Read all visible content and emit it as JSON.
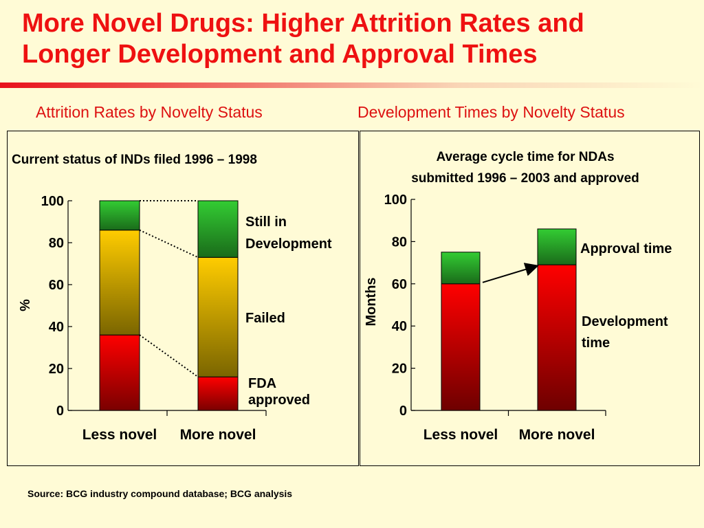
{
  "slide": {
    "title_line1": "More Novel Drugs: Higher Attrition Rates and",
    "title_line2": "Longer Development and Approval Times",
    "left_heading": "Attrition Rates by Novelty Status",
    "right_heading": "Development Times by Novelty Status",
    "source": "Source: BCG industry compound database; BCG analysis"
  },
  "colors": {
    "title": "#ee1111",
    "green": "#2f9e2f",
    "yellow": "#f2c200",
    "red": "#e60000"
  },
  "chart_data": [
    {
      "type": "bar",
      "stacked": true,
      "title": "Current status of INDs filed 1996 – 1998",
      "ylabel": "%",
      "ylim": [
        0,
        100
      ],
      "yticks": [
        0,
        20,
        40,
        60,
        80,
        100
      ],
      "categories": [
        "Less novel",
        "More novel"
      ],
      "series": [
        {
          "name": "FDA approved",
          "values": [
            36,
            16
          ]
        },
        {
          "name": "Failed",
          "values": [
            50,
            57
          ]
        },
        {
          "name": "Still in Development",
          "values": [
            14,
            27
          ]
        }
      ],
      "legend_labels": {
        "still_line1": "Still in",
        "still_line2": "Development",
        "failed": "Failed",
        "fda_line1": "FDA",
        "fda_line2": "approved"
      }
    },
    {
      "type": "bar",
      "stacked": true,
      "title_line1": "Average cycle time for NDAs",
      "title_line2": "submitted 1996 – 2003 and approved",
      "ylabel": "Months",
      "ylim": [
        0,
        100
      ],
      "yticks": [
        0,
        20,
        40,
        60,
        80,
        100
      ],
      "categories": [
        "Less novel",
        "More novel"
      ],
      "series": [
        {
          "name": "Development time",
          "values": [
            60,
            69
          ]
        },
        {
          "name": "Approval time",
          "values": [
            15,
            17
          ]
        }
      ],
      "legend_labels": {
        "approval": "Approval time",
        "dev_line1": "Development",
        "dev_line2": "time"
      }
    }
  ]
}
